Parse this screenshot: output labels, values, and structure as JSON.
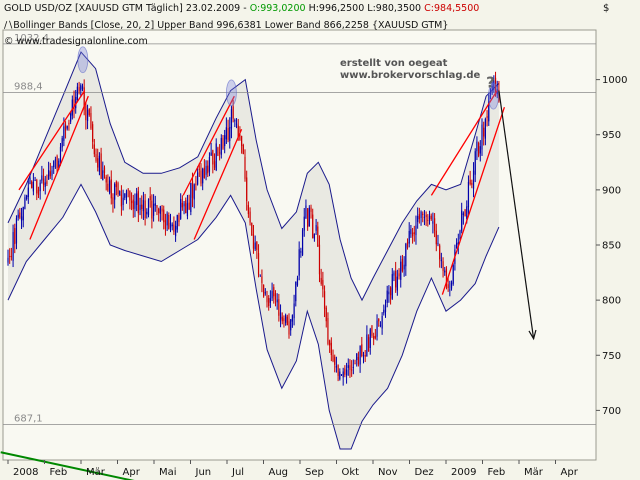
{
  "header": {
    "title": "GOLD USD/OZ [XAUUSD GTM  Täglich]",
    "date": "23.02.2009 -",
    "open": "O:993,0200",
    "high": "H:996,2500",
    "low": "L:980,3500",
    "close": "C:984,5500",
    "bollinger": "Bollinger Bands [Close, 20, 2] Upper Band 996,6381 Lower Band 866,2258 {XAUUSD GTM}",
    "copyright": "© www.tradesignalonline.com",
    "currency": "$"
  },
  "annotations": {
    "line1": "erstellt von oegeat",
    "line2": "www.brokervorschlag.de",
    "question": "?"
  },
  "colors": {
    "background": "#f4f4ea",
    "up_candle": "#0000aa",
    "down_candle": "#cc0000",
    "band": "#1a1a8c",
    "band_fill": "#e9e9e2",
    "trend_red": "#ff0000",
    "trend_green": "#008800"
  },
  "chart_data": {
    "type": "candlestick",
    "y_axis_side": "right",
    "ylim": [
      655,
      1045
    ],
    "yticks": [
      700,
      750,
      800,
      850,
      900,
      950,
      1000
    ],
    "y_tick_labels": [
      "700",
      "750",
      "800",
      "850",
      "900",
      "950",
      "1000"
    ],
    "x_labels": [
      "2008",
      "Feb",
      "Mär",
      "Apr",
      "Mai",
      "Jun",
      "Jul",
      "Aug",
      "Sep",
      "Okt",
      "Nov",
      "Dez",
      "2009",
      "Feb",
      "Mär",
      "Apr"
    ],
    "horizontal_levels": [
      {
        "value": 1032.4,
        "label": "1032,4"
      },
      {
        "value": 988.4,
        "label": "988,4"
      },
      {
        "value": 687.1,
        "label": "687,1"
      }
    ],
    "close_anchors": [
      {
        "m": 0.0,
        "v": 835
      },
      {
        "m": 0.35,
        "v": 885
      },
      {
        "m": 0.7,
        "v": 910
      },
      {
        "m": 1.0,
        "v": 900
      },
      {
        "m": 1.4,
        "v": 935
      },
      {
        "m": 1.8,
        "v": 975
      },
      {
        "m": 2.0,
        "v": 995
      },
      {
        "m": 2.15,
        "v": 970
      },
      {
        "m": 2.4,
        "v": 935
      },
      {
        "m": 2.7,
        "v": 900
      },
      {
        "m": 3.1,
        "v": 890
      },
      {
        "m": 3.5,
        "v": 890
      },
      {
        "m": 4.0,
        "v": 880
      },
      {
        "m": 4.5,
        "v": 870
      },
      {
        "m": 5.0,
        "v": 895
      },
      {
        "m": 5.5,
        "v": 925
      },
      {
        "m": 5.9,
        "v": 940
      },
      {
        "m": 6.1,
        "v": 965
      },
      {
        "m": 6.35,
        "v": 950
      },
      {
        "m": 6.6,
        "v": 880
      },
      {
        "m": 6.9,
        "v": 820
      },
      {
        "m": 7.2,
        "v": 800
      },
      {
        "m": 7.5,
        "v": 790
      },
      {
        "m": 7.7,
        "v": 770
      },
      {
        "m": 7.9,
        "v": 820
      },
      {
        "m": 8.15,
        "v": 880
      },
      {
        "m": 8.45,
        "v": 860
      },
      {
        "m": 8.7,
        "v": 780
      },
      {
        "m": 8.95,
        "v": 745
      },
      {
        "m": 9.2,
        "v": 730
      },
      {
        "m": 9.5,
        "v": 745
      },
      {
        "m": 9.8,
        "v": 760
      },
      {
        "m": 10.1,
        "v": 775
      },
      {
        "m": 10.4,
        "v": 805
      },
      {
        "m": 10.7,
        "v": 825
      },
      {
        "m": 11.0,
        "v": 855
      },
      {
        "m": 11.3,
        "v": 875
      },
      {
        "m": 11.6,
        "v": 870
      },
      {
        "m": 11.85,
        "v": 830
      },
      {
        "m": 12.1,
        "v": 815
      },
      {
        "m": 12.35,
        "v": 860
      },
      {
        "m": 12.6,
        "v": 895
      },
      {
        "m": 12.85,
        "v": 935
      },
      {
        "m": 13.1,
        "v": 965
      },
      {
        "m": 13.25,
        "v": 990
      },
      {
        "m": 13.45,
        "v": 984.55
      }
    ],
    "upper_band": [
      {
        "m": 0.0,
        "v": 870
      },
      {
        "m": 0.5,
        "v": 905
      },
      {
        "m": 1.0,
        "v": 945
      },
      {
        "m": 1.5,
        "v": 985
      },
      {
        "m": 2.0,
        "v": 1025
      },
      {
        "m": 2.4,
        "v": 1010
      },
      {
        "m": 2.8,
        "v": 960
      },
      {
        "m": 3.2,
        "v": 925
      },
      {
        "m": 3.7,
        "v": 915
      },
      {
        "m": 4.2,
        "v": 915
      },
      {
        "m": 4.7,
        "v": 920
      },
      {
        "m": 5.2,
        "v": 930
      },
      {
        "m": 5.7,
        "v": 965
      },
      {
        "m": 6.1,
        "v": 990
      },
      {
        "m": 6.5,
        "v": 1000
      },
      {
        "m": 6.8,
        "v": 945
      },
      {
        "m": 7.1,
        "v": 900
      },
      {
        "m": 7.5,
        "v": 865
      },
      {
        "m": 7.9,
        "v": 880
      },
      {
        "m": 8.2,
        "v": 915
      },
      {
        "m": 8.5,
        "v": 925
      },
      {
        "m": 8.8,
        "v": 905
      },
      {
        "m": 9.1,
        "v": 855
      },
      {
        "m": 9.4,
        "v": 820
      },
      {
        "m": 9.7,
        "v": 800
      },
      {
        "m": 10.0,
        "v": 820
      },
      {
        "m": 10.4,
        "v": 845
      },
      {
        "m": 10.8,
        "v": 870
      },
      {
        "m": 11.2,
        "v": 890
      },
      {
        "m": 11.6,
        "v": 905
      },
      {
        "m": 12.0,
        "v": 900
      },
      {
        "m": 12.4,
        "v": 905
      },
      {
        "m": 12.8,
        "v": 950
      },
      {
        "m": 13.1,
        "v": 985
      },
      {
        "m": 13.45,
        "v": 996.64
      }
    ],
    "lower_band": [
      {
        "m": 0.0,
        "v": 800
      },
      {
        "m": 0.5,
        "v": 835
      },
      {
        "m": 1.0,
        "v": 855
      },
      {
        "m": 1.5,
        "v": 875
      },
      {
        "m": 2.0,
        "v": 905
      },
      {
        "m": 2.4,
        "v": 880
      },
      {
        "m": 2.8,
        "v": 850
      },
      {
        "m": 3.2,
        "v": 845
      },
      {
        "m": 3.7,
        "v": 840
      },
      {
        "m": 4.2,
        "v": 835
      },
      {
        "m": 4.7,
        "v": 845
      },
      {
        "m": 5.2,
        "v": 855
      },
      {
        "m": 5.7,
        "v": 875
      },
      {
        "m": 6.1,
        "v": 895
      },
      {
        "m": 6.5,
        "v": 870
      },
      {
        "m": 6.8,
        "v": 810
      },
      {
        "m": 7.1,
        "v": 755
      },
      {
        "m": 7.5,
        "v": 720
      },
      {
        "m": 7.9,
        "v": 745
      },
      {
        "m": 8.2,
        "v": 790
      },
      {
        "m": 8.5,
        "v": 760
      },
      {
        "m": 8.8,
        "v": 700
      },
      {
        "m": 9.1,
        "v": 665
      },
      {
        "m": 9.4,
        "v": 665
      },
      {
        "m": 9.7,
        "v": 690
      },
      {
        "m": 10.0,
        "v": 705
      },
      {
        "m": 10.4,
        "v": 720
      },
      {
        "m": 10.8,
        "v": 750
      },
      {
        "m": 11.2,
        "v": 790
      },
      {
        "m": 11.6,
        "v": 820
      },
      {
        "m": 12.0,
        "v": 790
      },
      {
        "m": 12.4,
        "v": 800
      },
      {
        "m": 12.8,
        "v": 815
      },
      {
        "m": 13.1,
        "v": 840
      },
      {
        "m": 13.45,
        "v": 866.23
      }
    ],
    "trendlines": [
      {
        "color": "red",
        "points": [
          [
            0.3,
            900
          ],
          [
            2.1,
            990
          ]
        ]
      },
      {
        "color": "red",
        "points": [
          [
            0.6,
            855
          ],
          [
            2.2,
            985
          ]
        ]
      },
      {
        "color": "red",
        "points": [
          [
            4.8,
            895
          ],
          [
            6.2,
            985
          ]
        ]
      },
      {
        "color": "red",
        "points": [
          [
            5.1,
            855
          ],
          [
            6.4,
            955
          ]
        ]
      },
      {
        "color": "red",
        "points": [
          [
            11.6,
            895
          ],
          [
            13.4,
            990
          ]
        ]
      },
      {
        "color": "red",
        "points": [
          [
            11.9,
            805
          ],
          [
            13.6,
            975
          ]
        ]
      },
      {
        "color": "green",
        "points": [
          [
            -0.2,
            662
          ],
          [
            3.6,
            635
          ]
        ]
      }
    ],
    "forecast_arrow": {
      "points": [
        [
          13.45,
          990
        ],
        [
          14.4,
          765
        ]
      ]
    },
    "highlight_circles": [
      {
        "m": 2.05,
        "v": 1018
      },
      {
        "m": 6.12,
        "v": 988
      },
      {
        "m": 13.3,
        "v": 985
      }
    ]
  }
}
